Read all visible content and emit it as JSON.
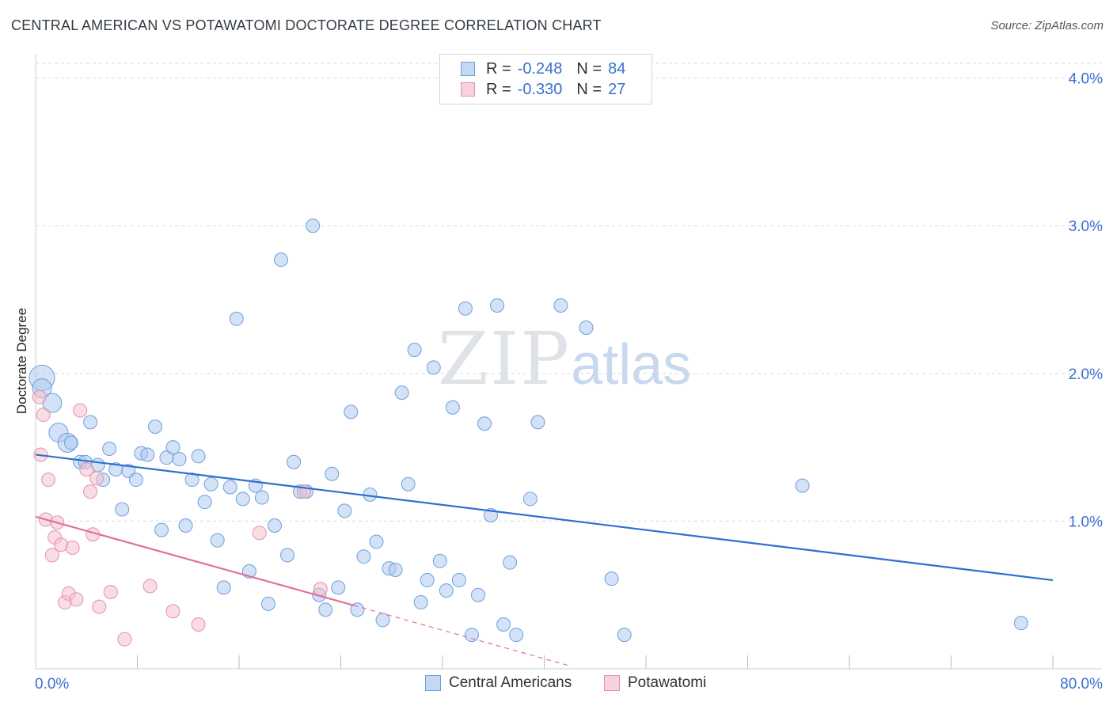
{
  "title": "CENTRAL AMERICAN VS POTAWATOMI DOCTORATE DEGREE CORRELATION CHART",
  "source": "Source: ZipAtlas.com",
  "watermark": {
    "zip": "ZIP",
    "atlas": "atlas"
  },
  "legend_top": [
    {
      "r_label": "R = ",
      "r_value": "-0.248",
      "n_label": "N = ",
      "n_value": "84"
    },
    {
      "r_label": "R = ",
      "r_value": "-0.330",
      "n_label": "N = ",
      "n_value": "27"
    }
  ],
  "legend_bottom": [
    "Central Americans",
    "Potawatomi"
  ],
  "colors": {
    "blue_fill": "#aecbef",
    "blue_stroke": "#6e9fdc",
    "blue_line": "#2f6fd1",
    "pink_fill": "#f6bfd0",
    "pink_stroke": "#e590ad",
    "pink_line": "#e0719a",
    "tick_label": "#3b6fd0",
    "grid": "#d9d9d9"
  },
  "chart_data": {
    "type": "scatter",
    "title": "CENTRAL AMERICAN VS POTAWATOMI DOCTORATE DEGREE CORRELATION CHART",
    "xlabel": "",
    "ylabel": "Doctorate Degree",
    "xlim": [
      0,
      80
    ],
    "ylim": [
      0,
      4.1
    ],
    "x_tick_labels": [
      "0.0%",
      "80.0%"
    ],
    "y_ticks": [
      1.0,
      2.0,
      3.0,
      4.0
    ],
    "y_tick_labels": [
      "1.0%",
      "2.0%",
      "3.0%",
      "4.0%"
    ],
    "grid": "horizontal dashed",
    "legend_position": "top-center",
    "series": [
      {
        "name": "Central Americans",
        "r": -0.248,
        "n": 84,
        "trend": {
          "x": [
            0,
            80
          ],
          "y": [
            1.45,
            0.6
          ]
        },
        "points": [
          [
            0.5,
            1.97,
            3
          ],
          [
            0.5,
            1.9,
            2
          ],
          [
            1.3,
            1.8,
            2
          ],
          [
            1.8,
            1.6,
            2
          ],
          [
            2.5,
            1.53,
            2
          ],
          [
            2.8,
            1.53,
            1
          ],
          [
            3.5,
            1.4,
            1
          ],
          [
            3.9,
            1.4,
            1
          ],
          [
            4.3,
            1.67,
            1
          ],
          [
            4.9,
            1.38,
            1
          ],
          [
            5.3,
            1.28,
            1
          ],
          [
            5.8,
            1.49,
            1
          ],
          [
            6.3,
            1.35,
            1
          ],
          [
            6.8,
            1.08,
            1
          ],
          [
            7.3,
            1.34,
            1
          ],
          [
            7.9,
            1.28,
            1
          ],
          [
            8.3,
            1.46,
            1
          ],
          [
            8.8,
            1.45,
            1
          ],
          [
            9.4,
            1.64,
            1
          ],
          [
            9.9,
            0.94,
            1
          ],
          [
            10.3,
            1.43,
            1
          ],
          [
            10.8,
            1.5,
            1
          ],
          [
            11.3,
            1.42,
            1
          ],
          [
            11.8,
            0.97,
            1
          ],
          [
            12.3,
            1.28,
            1
          ],
          [
            12.8,
            1.44,
            1
          ],
          [
            13.3,
            1.13,
            1
          ],
          [
            13.8,
            1.25,
            1
          ],
          [
            14.3,
            0.87,
            1
          ],
          [
            14.8,
            0.55,
            1
          ],
          [
            15.3,
            1.23,
            1
          ],
          [
            15.8,
            2.37,
            1
          ],
          [
            16.3,
            1.15,
            1
          ],
          [
            16.8,
            0.66,
            1
          ],
          [
            17.3,
            1.24,
            1
          ],
          [
            17.8,
            1.16,
            1
          ],
          [
            18.3,
            0.44,
            1
          ],
          [
            18.8,
            0.97,
            1
          ],
          [
            19.3,
            2.77,
            1
          ],
          [
            19.8,
            0.77,
            1
          ],
          [
            20.3,
            1.4,
            1
          ],
          [
            20.8,
            1.2,
            1
          ],
          [
            21.3,
            1.2,
            1
          ],
          [
            21.8,
            3.0,
            1
          ],
          [
            22.3,
            0.5,
            1
          ],
          [
            22.8,
            0.4,
            1
          ],
          [
            23.3,
            1.32,
            1
          ],
          [
            23.8,
            0.55,
            1
          ],
          [
            24.3,
            1.07,
            1
          ],
          [
            24.8,
            1.74,
            1
          ],
          [
            25.3,
            0.4,
            1
          ],
          [
            25.8,
            0.76,
            1
          ],
          [
            26.3,
            1.18,
            1
          ],
          [
            26.8,
            0.86,
            1
          ],
          [
            27.3,
            0.33,
            1
          ],
          [
            27.8,
            0.68,
            1
          ],
          [
            28.3,
            0.67,
            1
          ],
          [
            28.8,
            1.87,
            1
          ],
          [
            29.3,
            1.25,
            1
          ],
          [
            29.8,
            2.16,
            1
          ],
          [
            30.3,
            0.45,
            1
          ],
          [
            30.8,
            0.6,
            1
          ],
          [
            31.3,
            2.04,
            1
          ],
          [
            31.8,
            0.73,
            1
          ],
          [
            32.3,
            0.53,
            1
          ],
          [
            32.8,
            1.77,
            1
          ],
          [
            33.3,
            0.6,
            1
          ],
          [
            33.8,
            2.44,
            1
          ],
          [
            34.3,
            0.23,
            1
          ],
          [
            34.8,
            0.5,
            1
          ],
          [
            35.3,
            1.66,
            1
          ],
          [
            35.8,
            1.04,
            1
          ],
          [
            36.3,
            2.46,
            1
          ],
          [
            36.8,
            0.3,
            1
          ],
          [
            37.3,
            0.72,
            1
          ],
          [
            37.8,
            0.23,
            1
          ],
          [
            38.9,
            1.15,
            1
          ],
          [
            39.5,
            1.67,
            1
          ],
          [
            41.3,
            2.46,
            1
          ],
          [
            43.3,
            2.31,
            1
          ],
          [
            45.3,
            0.61,
            1
          ],
          [
            46.3,
            0.23,
            1
          ],
          [
            60.3,
            1.24,
            1
          ],
          [
            77.5,
            0.31,
            1
          ]
        ]
      },
      {
        "name": "Potawatomi",
        "r": -0.33,
        "n": 27,
        "trend": {
          "x": [
            0,
            25
          ],
          "y": [
            1.03,
            0.43
          ]
        },
        "trend_extension": {
          "x": [
            25,
            42
          ],
          "y": [
            0.43,
            0.02
          ]
        },
        "points": [
          [
            0.3,
            1.84
          ],
          [
            0.4,
            1.45
          ],
          [
            0.6,
            1.72
          ],
          [
            0.8,
            1.01
          ],
          [
            1.0,
            1.28
          ],
          [
            1.3,
            0.77
          ],
          [
            1.5,
            0.89
          ],
          [
            1.7,
            0.99
          ],
          [
            2.0,
            0.84
          ],
          [
            2.3,
            0.45
          ],
          [
            2.6,
            0.51
          ],
          [
            2.9,
            0.82
          ],
          [
            3.2,
            0.47
          ],
          [
            3.5,
            1.75
          ],
          [
            4.0,
            1.35
          ],
          [
            4.3,
            1.2
          ],
          [
            4.5,
            0.91
          ],
          [
            4.8,
            1.29
          ],
          [
            5.0,
            0.42
          ],
          [
            5.9,
            0.52
          ],
          [
            7.0,
            0.2
          ],
          [
            9.0,
            0.56
          ],
          [
            10.8,
            0.39
          ],
          [
            12.8,
            0.3
          ],
          [
            17.6,
            0.92
          ],
          [
            21.1,
            1.2
          ],
          [
            22.4,
            0.54
          ]
        ]
      }
    ]
  }
}
